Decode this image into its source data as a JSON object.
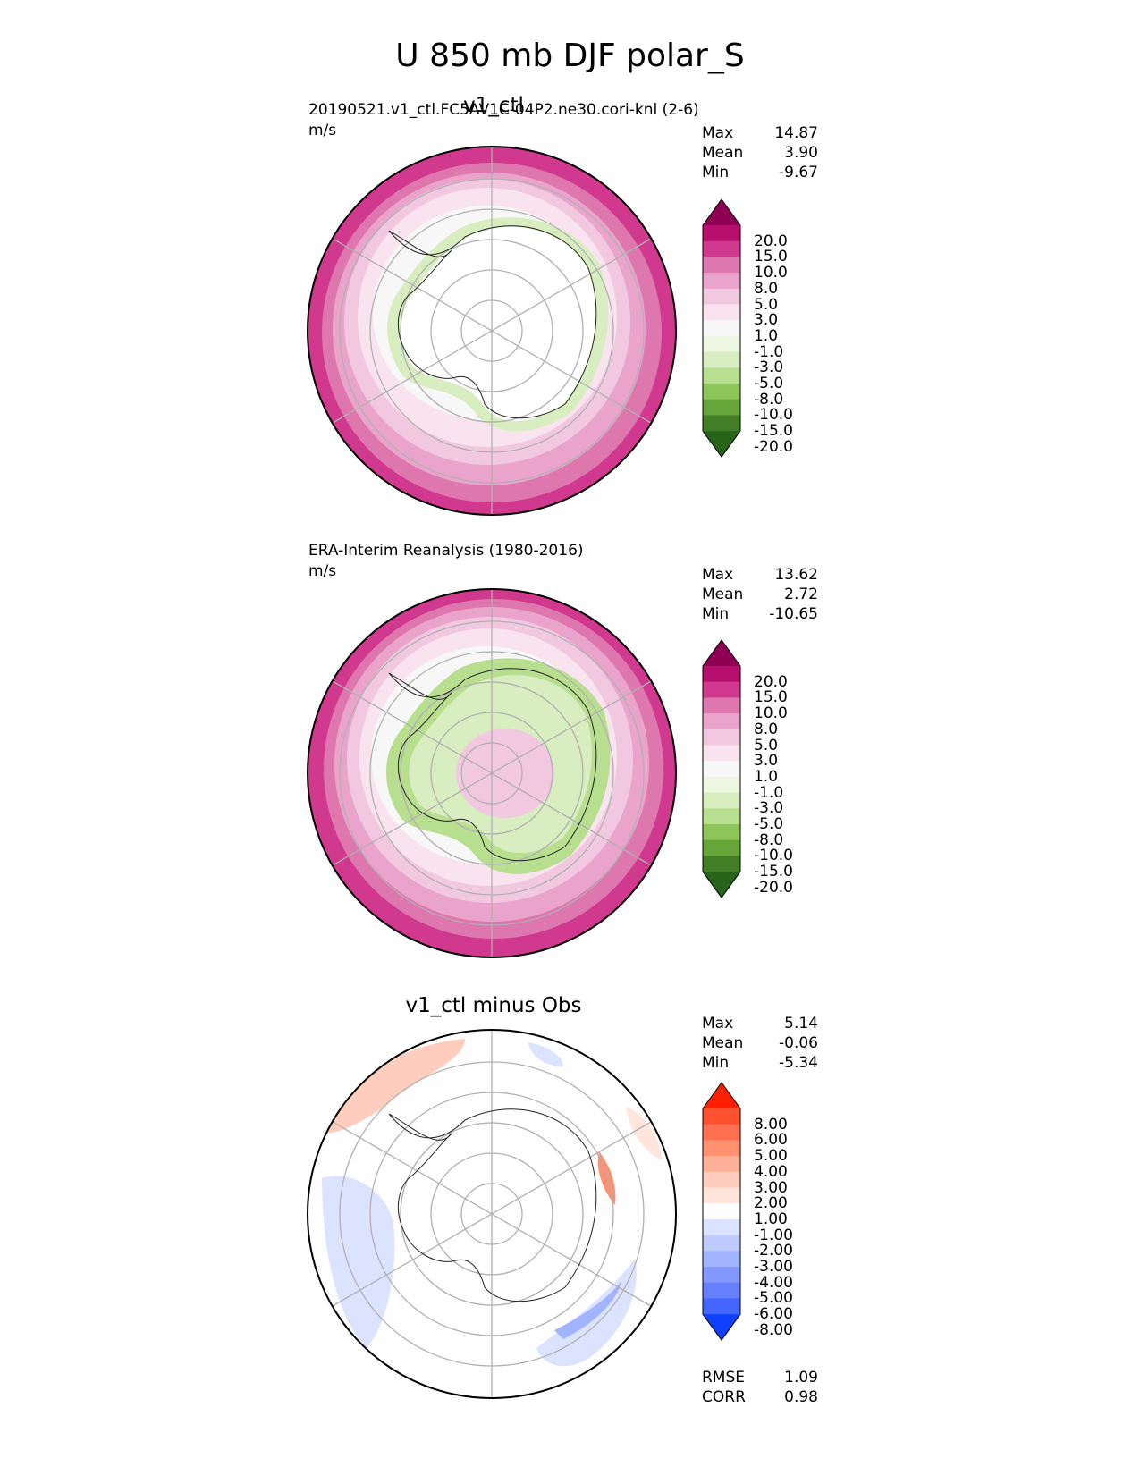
{
  "figure": {
    "title": "U 850 mb DJF polar_S"
  },
  "panels": [
    {
      "title": "v1_ctl",
      "left_label": "20190521.v1_ctl.FC5AV1C-04P2.ne30.cori-knl (2-6)",
      "units": "m/s",
      "stats": [
        {
          "label": "Max",
          "value": "14.87"
        },
        {
          "label": "Mean",
          "value": "3.90"
        },
        {
          "label": "Min",
          "value": "-9.67"
        }
      ],
      "colorbar": {
        "labels": [
          "20.0",
          "15.0",
          "10.0",
          "8.0",
          "5.0",
          "3.0",
          "1.0",
          "-1.0",
          "-3.0",
          "-5.0",
          "-8.0",
          "-10.0",
          "-15.0",
          "-20.0"
        ],
        "colors": [
          "#8e0152",
          "#b80f6f",
          "#d0398e",
          "#de77ae",
          "#eaa4cc",
          "#f2c8e1",
          "#f8e3ef",
          "#f7f7f7",
          "#ecf6e0",
          "#d9eec0",
          "#b8df90",
          "#8ec55a",
          "#65a53a",
          "#437d25",
          "#276419"
        ]
      }
    },
    {
      "title": "",
      "left_label": "ERA-Interim Reanalysis (1980-2016)",
      "units": "m/s",
      "stats": [
        {
          "label": "Max",
          "value": "13.62"
        },
        {
          "label": "Mean",
          "value": "2.72"
        },
        {
          "label": "Min",
          "value": "-10.65"
        }
      ],
      "colorbar": {
        "labels": [
          "20.0",
          "15.0",
          "10.0",
          "8.0",
          "5.0",
          "3.0",
          "1.0",
          "-1.0",
          "-3.0",
          "-5.0",
          "-8.0",
          "-10.0",
          "-15.0",
          "-20.0"
        ],
        "colors": [
          "#8e0152",
          "#b80f6f",
          "#d0398e",
          "#de77ae",
          "#eaa4cc",
          "#f2c8e1",
          "#f8e3ef",
          "#f7f7f7",
          "#ecf6e0",
          "#d9eec0",
          "#b8df90",
          "#8ec55a",
          "#65a53a",
          "#437d25",
          "#276419"
        ]
      }
    },
    {
      "title": "v1_ctl minus Obs",
      "left_label": "",
      "units": "",
      "stats": [
        {
          "label": "Max",
          "value": "5.14"
        },
        {
          "label": "Mean",
          "value": "-0.06"
        },
        {
          "label": "Min",
          "value": "-5.34"
        }
      ],
      "metrics": [
        {
          "label": "RMSE",
          "value": "1.09"
        },
        {
          "label": "CORR",
          "value": "0.98"
        }
      ],
      "colorbar": {
        "labels": [
          "8.00",
          "6.00",
          "5.00",
          "4.00",
          "3.00",
          "2.00",
          "1.00",
          "-1.00",
          "-2.00",
          "-3.00",
          "-4.00",
          "-5.00",
          "-6.00",
          "-8.00"
        ],
        "colors": [
          "#ff2000",
          "#ff5030",
          "#ff7050",
          "#ff9070",
          "#ffb098",
          "#ffcdbd",
          "#ffe5dc",
          "#fefefe",
          "#dce3ff",
          "#bfcbff",
          "#a2b3ff",
          "#8399ff",
          "#6680ff",
          "#4466ff",
          "#1040ff"
        ]
      }
    }
  ]
}
